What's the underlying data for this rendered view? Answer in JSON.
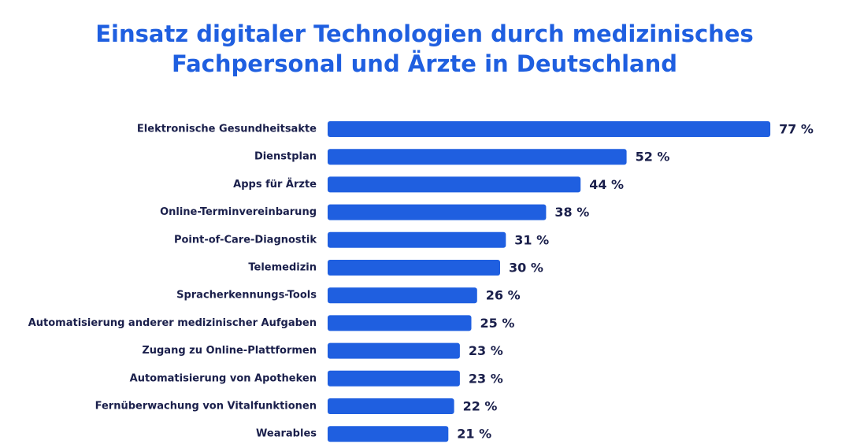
{
  "chart_data": {
    "type": "bar",
    "orientation": "horizontal",
    "title_lines": [
      "Einsatz digitaler Technologien durch medizinisches",
      "Fachpersonal und Ärzte in Deutschland"
    ],
    "categories": [
      "Elektronische Gesundheitsakte",
      "Dienstplan",
      "Apps für Ärzte",
      "Online-Terminvereinbarung",
      "Point-of-Care-Diagnostik",
      "Telemedizin",
      "Spracherkennungs-Tools",
      "Automatisierung anderer medizinischer Aufgaben",
      "Zugang zu Online-Plattformen",
      "Automatisierung von Apotheken",
      "Fernüberwachung von Vitalfunktionen",
      "Wearables"
    ],
    "values": [
      77,
      52,
      44,
      38,
      31,
      30,
      26,
      25,
      23,
      23,
      22,
      21
    ],
    "value_labels": [
      "77 %",
      "52 %",
      "44 %",
      "38 %",
      "31 %",
      "30 %",
      "26 %",
      "25 %",
      "23 %",
      "23 %",
      "22 %",
      "21 %"
    ],
    "unit": "%",
    "bar_color": "#1f5fe0",
    "grid": false,
    "legend": "none"
  }
}
